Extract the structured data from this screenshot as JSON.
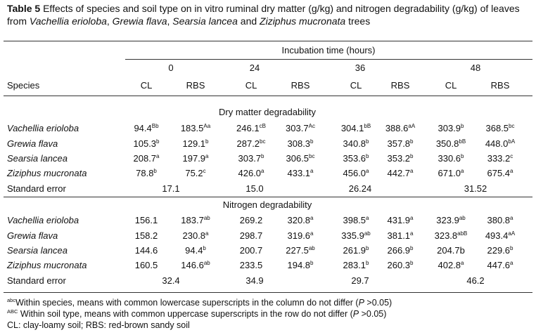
{
  "caption": {
    "label": "Table 5",
    "text_1": " Effects of species and soil type on in vitro ruminal dry matter (g/kg) and nitrogen degradability (g/kg) of leaves from ",
    "sp1": "Vachellia erioloba",
    "sep1": ", ",
    "sp2": "Grewia flava",
    "sep2": ", ",
    "sp3": "Searsia lancea",
    "sep3": " and ",
    "sp4": "Ziziphus mucronata",
    "text_2": " trees"
  },
  "header": {
    "incubation": "Incubation time (hours)",
    "times": [
      "0",
      "24",
      "36",
      "48"
    ],
    "species": "Species",
    "soils": [
      "CL",
      "RBS",
      "CL",
      "RBS",
      "CL",
      "RBS",
      "CL",
      "RBS"
    ]
  },
  "dm": {
    "title": "Dry matter degradability",
    "rows": [
      {
        "name": "Vachellia erioloba",
        "vals": [
          [
            "94.4",
            "Bb"
          ],
          [
            "183.5",
            "Aa"
          ],
          [
            "246.1",
            "cB"
          ],
          [
            "303.7",
            "Ac"
          ],
          [
            "304.1",
            "bB"
          ],
          [
            "388.6",
            "aA"
          ],
          [
            "303.9",
            "b"
          ],
          [
            "368.5",
            "bc"
          ]
        ]
      },
      {
        "name": "Grewia flava",
        "vals": [
          [
            "105.3",
            "b"
          ],
          [
            "129.1",
            "b"
          ],
          [
            "287.2",
            "bc"
          ],
          [
            "308.3",
            "b"
          ],
          [
            "340.8",
            "b"
          ],
          [
            "357.8",
            "b"
          ],
          [
            "350.8",
            "bB"
          ],
          [
            "448.0",
            "bA"
          ]
        ]
      },
      {
        "name": "Searsia lancea",
        "vals": [
          [
            "208.7",
            "a"
          ],
          [
            "197.9",
            "a"
          ],
          [
            "303.7",
            "b"
          ],
          [
            "306.5",
            "bc"
          ],
          [
            "353.6",
            "b"
          ],
          [
            "353.2",
            "b"
          ],
          [
            "330.6",
            "b"
          ],
          [
            "333.2",
            "c"
          ]
        ]
      },
      {
        "name": "Ziziphus mucronata",
        "vals": [
          [
            "78.8",
            "b"
          ],
          [
            "75.2",
            "c"
          ],
          [
            "426.0",
            "a"
          ],
          [
            "433.1",
            "a"
          ],
          [
            "456.0",
            "a"
          ],
          [
            "442.7",
            "a"
          ],
          [
            "671.0",
            "a"
          ],
          [
            "675.4",
            "a"
          ]
        ]
      }
    ],
    "se_label": "Standard error",
    "se": [
      "17.1",
      "15.0",
      "26.24",
      "31.52"
    ]
  },
  "n": {
    "title": "Nitrogen degradability",
    "rows": [
      {
        "name": "Vachellia erioloba",
        "vals": [
          [
            "156.1",
            ""
          ],
          [
            "183.7",
            "ab"
          ],
          [
            "269.2",
            ""
          ],
          [
            "320.8",
            "a"
          ],
          [
            "398.5",
            "a"
          ],
          [
            "431.9",
            "a"
          ],
          [
            "323.9",
            "ab"
          ],
          [
            "380.8",
            "a"
          ]
        ]
      },
      {
        "name": "Grewia flava",
        "vals": [
          [
            "158.2",
            ""
          ],
          [
            "230.8",
            "a"
          ],
          [
            "298.7",
            ""
          ],
          [
            "319.6",
            "a"
          ],
          [
            "335.9",
            "ab"
          ],
          [
            "381.1",
            "a"
          ],
          [
            "323.8",
            "abB"
          ],
          [
            "493.4",
            "aA"
          ]
        ]
      },
      {
        "name": "Searsia lancea",
        "vals": [
          [
            "144.6",
            ""
          ],
          [
            "94.4",
            "b"
          ],
          [
            "200.7",
            ""
          ],
          [
            "227.5",
            "ab"
          ],
          [
            "261.9",
            "b"
          ],
          [
            "266.9",
            "b"
          ],
          [
            "204.7b",
            ""
          ],
          [
            "229.6",
            "b"
          ]
        ]
      },
      {
        "name": "Ziziphus mucronata",
        "vals": [
          [
            "160.5",
            ""
          ],
          [
            "146.6",
            "ab"
          ],
          [
            "233.5",
            ""
          ],
          [
            "194.8",
            "b"
          ],
          [
            "283.1",
            "b"
          ],
          [
            "260.3",
            "b"
          ],
          [
            "402.8",
            "a"
          ],
          [
            "447.6",
            "a"
          ]
        ]
      }
    ],
    "se_label": "Standard error",
    "se": [
      "32.4",
      "34.9",
      "29.7",
      "46.2"
    ]
  },
  "footnotes": {
    "f1_sup": "abc",
    "f1_a": "Within species, means with common lowercase superscripts in the column do not differ (",
    "f1_p": "P",
    "f1_b": " >0.05)",
    "f2_sup": "ABC",
    "f2_a": " Within soil type, means with common uppercase superscripts in the row do not differ (",
    "f2_p": "P",
    "f2_b": " >0.05)",
    "f3": "CL: clay-loamy soil; RBS: red-brown sandy soil"
  }
}
